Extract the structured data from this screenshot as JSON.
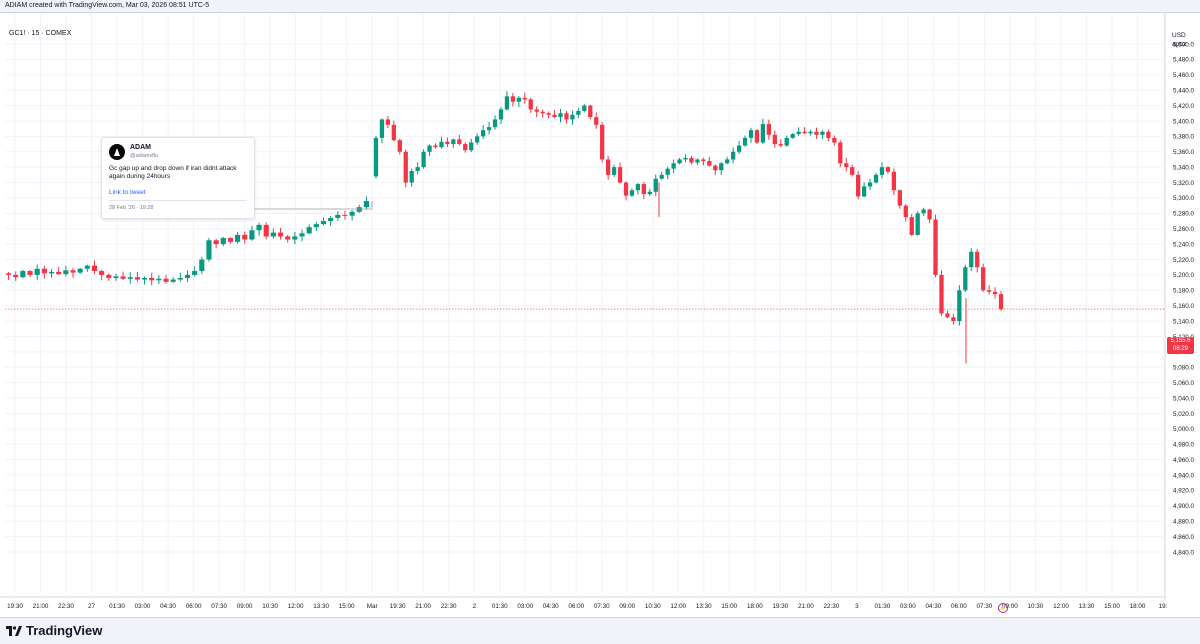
{
  "header": {
    "text": "ADIAM created with TradingView.com, Mar 03, 2026 08:51 UTC-5"
  },
  "symbol": {
    "title": "GC1! · 15 · COMEX"
  },
  "axis": {
    "currency": "USD",
    "mode": "apoz"
  },
  "price_tag": {
    "price": "5,155.6",
    "countdown": "08:29"
  },
  "tweet": {
    "name": "ADAM",
    "handle": "@adamsflu",
    "text": "Gc gap up and drop down if iran didnt attack again during 24hours",
    "link": "Link to tweet",
    "date": "28 Feb '26 · 19:28"
  },
  "logo": {
    "text": "TradingView"
  },
  "colors": {
    "up": "#089981",
    "down": "#f23645",
    "grid": "#f0f3fa",
    "axis_text": "#131722",
    "price_line": "#f23645"
  },
  "chart_data": {
    "type": "candlestick",
    "title": "GC1! · 15 · COMEX",
    "ylim": [
      4830,
      5510
    ],
    "yticks": [
      5500,
      5480,
      5460,
      5440,
      5420,
      5400,
      5380,
      5360,
      5340,
      5320,
      5300,
      5280,
      5260,
      5240,
      5220,
      5200,
      5180,
      5160,
      5140,
      5120,
      5100,
      5080,
      5060,
      5040,
      5020,
      5000,
      4980,
      4960,
      4940,
      4920,
      4900,
      4880,
      4860,
      4840
    ],
    "ytick_labels": [
      "5,500.0",
      "5,480.0",
      "5,460.0",
      "5,440.0",
      "5,420.0",
      "5,400.0",
      "5,380.0",
      "5,360.0",
      "5,340.0",
      "5,320.0",
      "5,300.0",
      "5,280.0",
      "5,260.0",
      "5,240.0",
      "5,220.0",
      "5,200.0",
      "5,180.0",
      "5,160.0",
      "5,140.0",
      "5,120.0",
      "5,100.0",
      "5,080.0",
      "5,060.0",
      "5,040.0",
      "5,020.0",
      "5,000.0",
      "4,980.0",
      "4,960.0",
      "4,940.0",
      "4,920.0",
      "4,900.0",
      "4,880.0",
      "4,860.0",
      "4,840.0"
    ],
    "xticks": [
      "19:30",
      "21:00",
      "22:30",
      "27",
      "01:30",
      "03:00",
      "04:30",
      "06:00",
      "07:30",
      "09:00",
      "10:30",
      "12:00",
      "13:30",
      "15:00",
      "Mar",
      "19:30",
      "21:00",
      "22:30",
      "2",
      "01:30",
      "03:00",
      "04:30",
      "06:00",
      "07:30",
      "09:00",
      "10:30",
      "12:00",
      "13:30",
      "15:00",
      "18:00",
      "19:30",
      "21:00",
      "22:30",
      "3",
      "01:30",
      "03:00",
      "04:30",
      "06:00",
      "07:30",
      "09:00",
      "10:30",
      "12:00",
      "13:30",
      "15:00",
      "18:00",
      "19:"
    ],
    "last_price": 5155.6,
    "segments": [
      {
        "name": "feb27",
        "path": [
          5202,
          5200,
          5197,
          5205,
          5200,
          5208,
          5202,
          5204,
          5201,
          5206,
          5203,
          5208,
          5212,
          5205,
          5200,
          5196,
          5198,
          5195,
          5197,
          5194,
          5196,
          5193,
          5195,
          5191,
          5194,
          5196,
          5200,
          5205,
          5220,
          5245,
          5240,
          5248,
          5243,
          5252,
          5246,
          5258,
          5265,
          5250,
          5255,
          5250,
          5246,
          5250,
          5254,
          5262,
          5266,
          5270,
          5274,
          5278,
          5277,
          5282,
          5288,
          5296
        ]
      },
      {
        "name": "mar02",
        "path": [
          5328,
          5378,
          5402,
          5395,
          5375,
          5360,
          5320,
          5335,
          5340,
          5360,
          5368,
          5366,
          5373,
          5370,
          5376,
          5370,
          5362,
          5372,
          5380,
          5388,
          5392,
          5402,
          5415,
          5432,
          5425,
          5430,
          5428,
          5415,
          5412,
          5410,
          5408,
          5405,
          5410,
          5402,
          5408,
          5413,
          5420,
          5405,
          5395,
          5350,
          5330,
          5340,
          5320,
          5303,
          5310,
          5318,
          5305,
          5308,
          5325,
          5330,
          5338,
          5345,
          5350,
          5352,
          5346,
          5350,
          5348,
          5342,
          5336,
          5345,
          5350,
          5360,
          5368,
          5378,
          5388,
          5372,
          5396,
          5382,
          5370,
          5368,
          5378,
          5383,
          5386,
          5384,
          5386,
          5382,
          5386,
          5378,
          5372,
          5345,
          5340,
          5330,
          5302,
          5315,
          5320,
          5330,
          5340,
          5334,
          5310,
          5290,
          5275,
          5252,
          5280,
          5285,
          5272,
          5200,
          5150,
          5145,
          5140,
          5180,
          5210,
          5230,
          5210,
          5180,
          5178,
          5175,
          5155.6
        ]
      }
    ]
  }
}
